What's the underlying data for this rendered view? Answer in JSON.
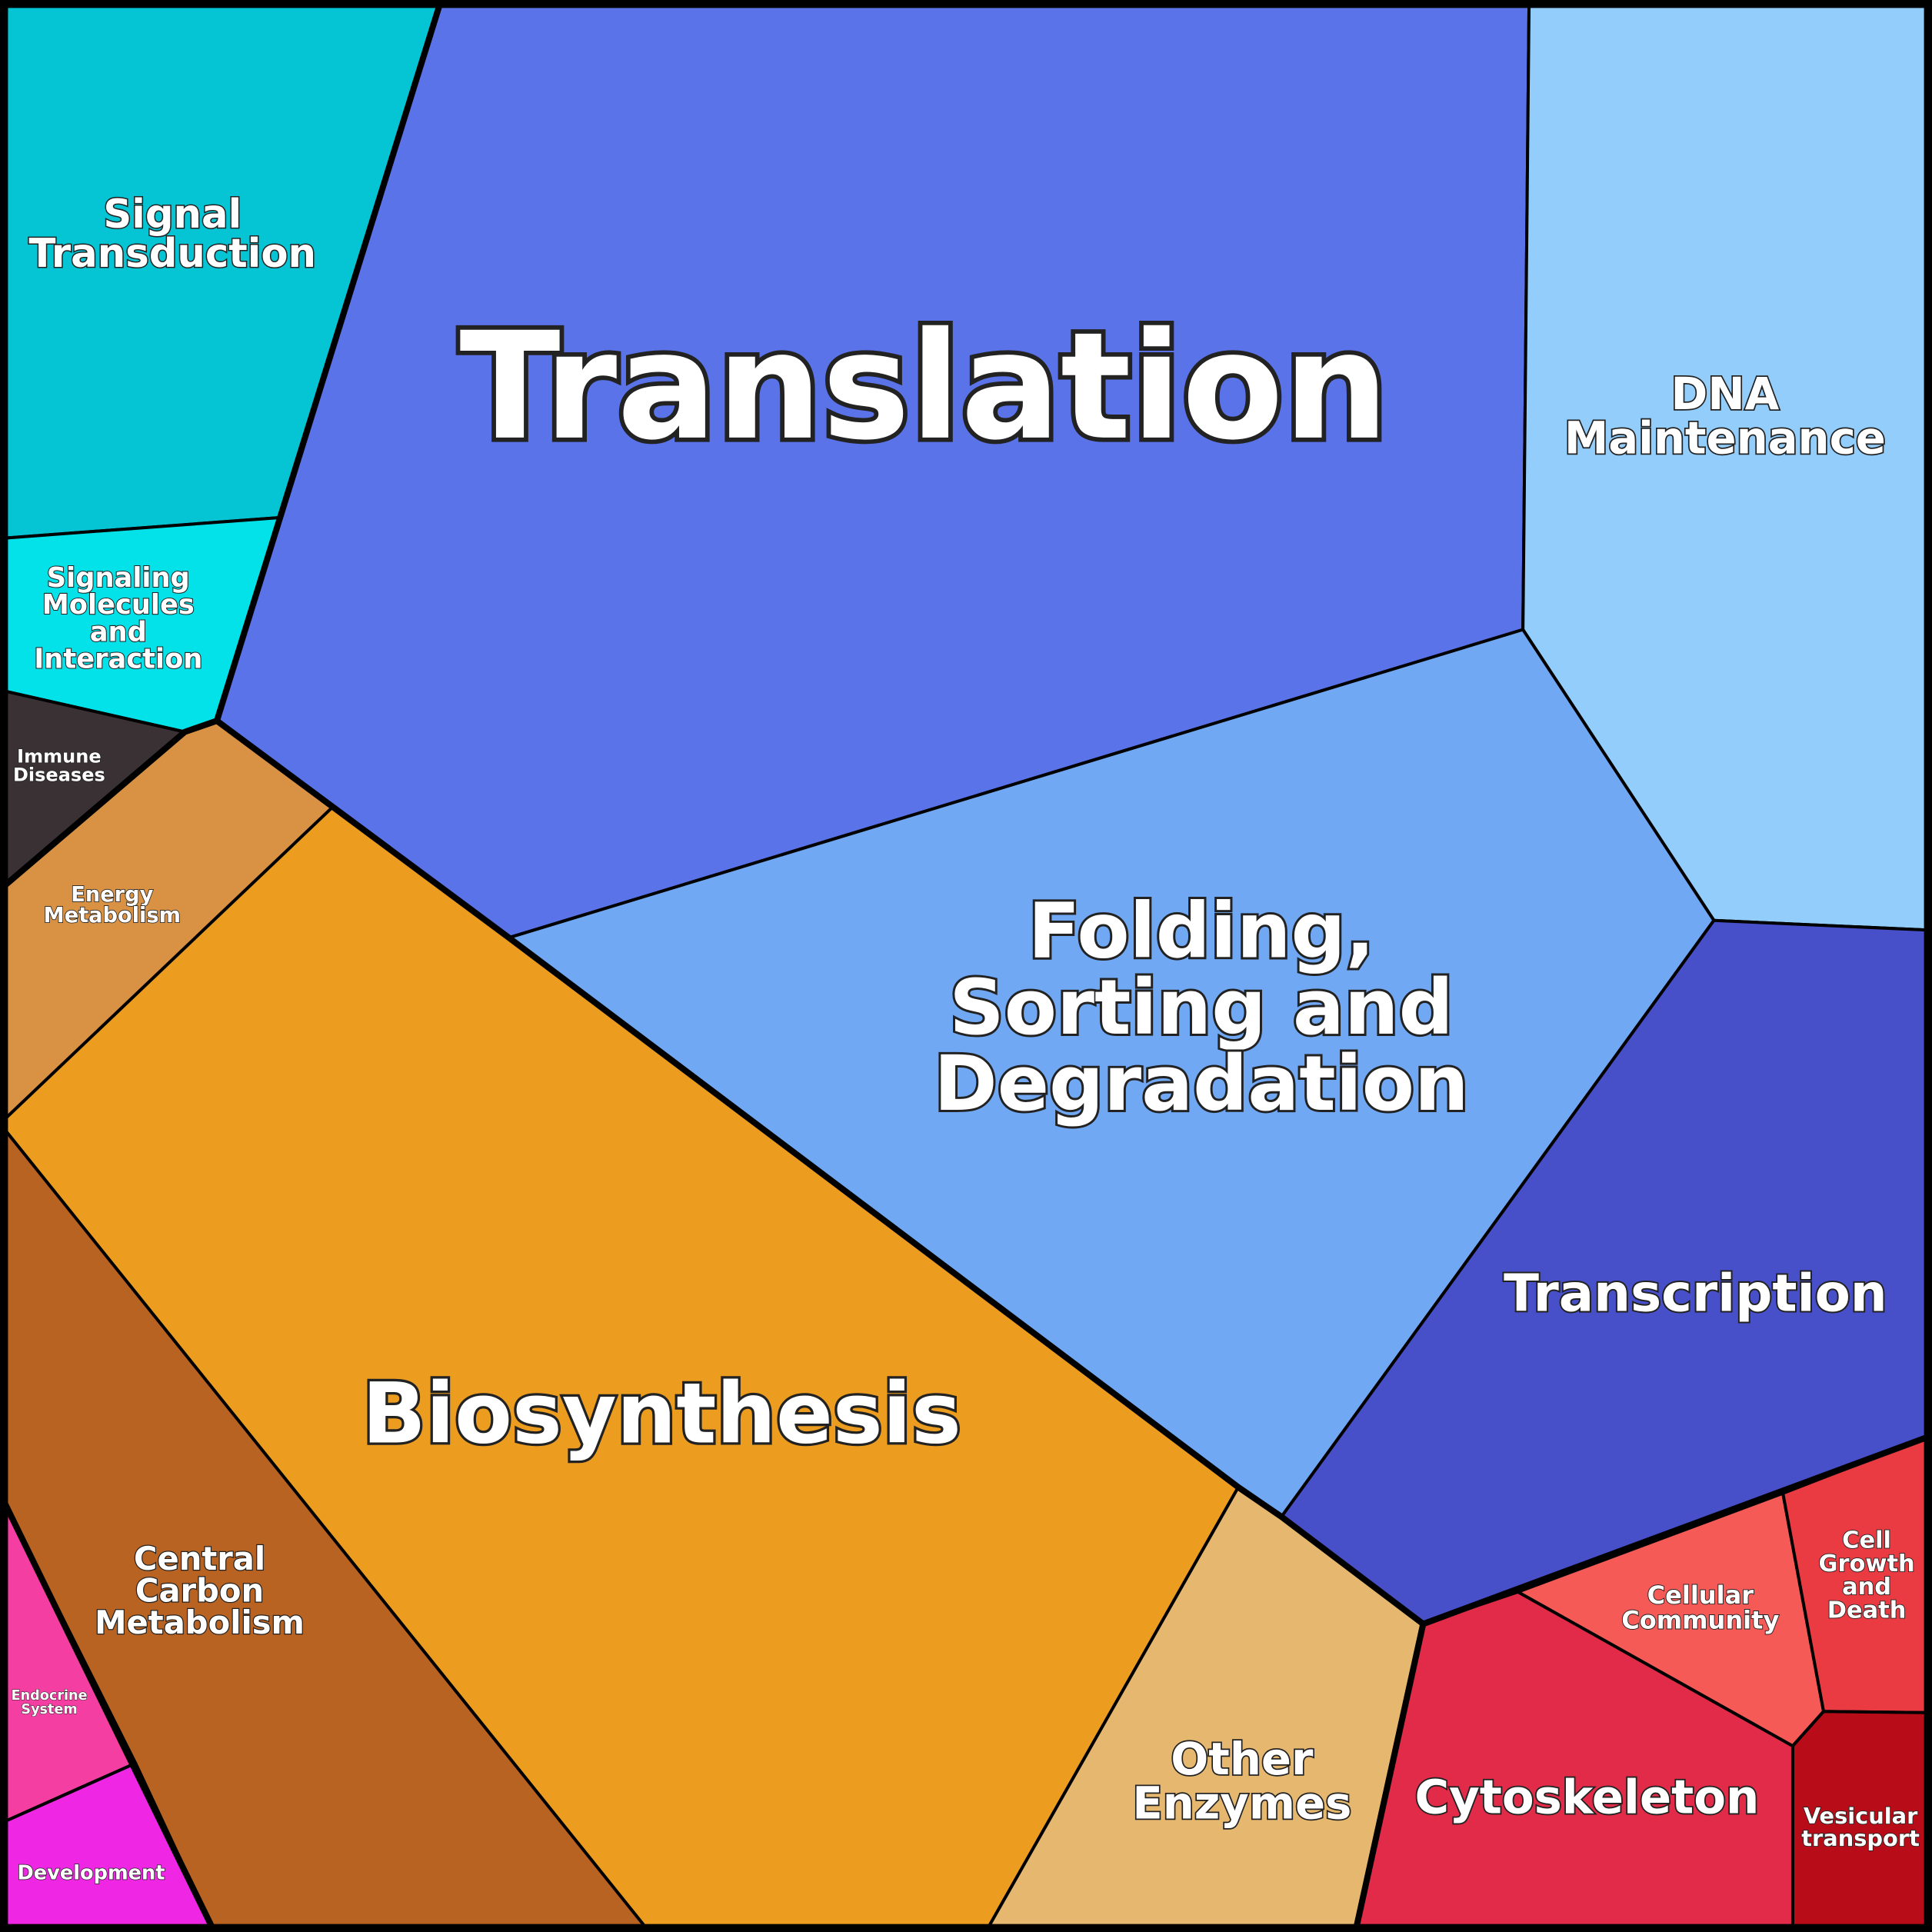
{
  "cells": [
    {
      "label": [
        "Signal",
        "Transduction"
      ],
      "color": "#05c4d3"
    },
    {
      "label": [
        "Signaling",
        "Molecules",
        "and",
        "Interaction"
      ],
      "color": "#03e2e8"
    },
    {
      "label": [
        "Translation"
      ],
      "color": "#5a73e8"
    },
    {
      "label": [
        "DNA",
        "Maintenance"
      ],
      "color": "#92cdfb"
    },
    {
      "label": [
        "Immune",
        "Diseases"
      ],
      "color": "#3a3134"
    },
    {
      "label": [
        "Energy",
        "Metabolism"
      ],
      "color": "#d99243"
    },
    {
      "label": [
        "Biosynthesis"
      ],
      "color": "#ec9d1f"
    },
    {
      "label": [
        "Folding,",
        "Sorting and",
        "Degradation"
      ],
      "color": "#71a8f3"
    },
    {
      "label": [
        "Transcription"
      ],
      "color": "#4850c9"
    },
    {
      "label": [
        "Central",
        "Carbon",
        "Metabolism"
      ],
      "color": "#b86322"
    },
    {
      "label": [
        "Endocrine",
        "System"
      ],
      "color": "#f43ea2"
    },
    {
      "label": [
        "Development"
      ],
      "color": "#ef26e3"
    },
    {
      "label": [
        "Other",
        "Enzymes"
      ],
      "color": "#e6b76e"
    },
    {
      "label": [
        "Cytoskeleton"
      ],
      "color": "#e12b48"
    },
    {
      "label": [
        "Cellular",
        "Community"
      ],
      "color": "#f65a57"
    },
    {
      "label": [
        "Cell",
        "Growth",
        "and",
        "Death"
      ],
      "color": "#ea3b43"
    },
    {
      "label": [
        "Vesicular",
        "transport"
      ],
      "color": "#b80d18"
    }
  ]
}
